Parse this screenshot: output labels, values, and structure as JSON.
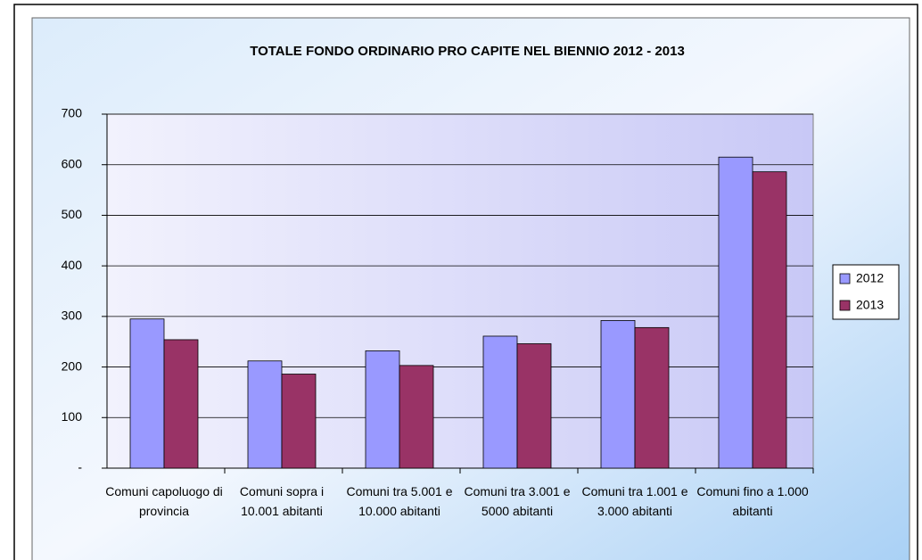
{
  "chart_data": {
    "type": "bar",
    "title": "TOTALE FONDO ORDINARIO PRO CAPITE NEL BIENNIO 2012 - 2013",
    "categories": [
      "Comuni capoluogo di provincia",
      "Comuni sopra i 10.001 abitanti",
      "Comuni tra 5.001 e 10.000 abitanti",
      "Comuni tra 3.001 e 5000 abitanti",
      "Comuni tra 1.001 e 3.000 abitanti",
      "Comuni fino a 1.000 abitanti"
    ],
    "series": [
      {
        "name": "2012",
        "color": "#9999ff",
        "values": [
          295,
          212,
          232,
          261,
          292,
          615
        ]
      },
      {
        "name": "2013",
        "color": "#993366",
        "values": [
          254,
          186,
          203,
          246,
          278,
          586
        ]
      }
    ],
    "ylim": [
      0,
      700
    ],
    "yticks": [
      {
        "value": 0,
        "label": "-"
      },
      100,
      200,
      300,
      400,
      500,
      600,
      700
    ],
    "grid": true,
    "legend": "right"
  }
}
